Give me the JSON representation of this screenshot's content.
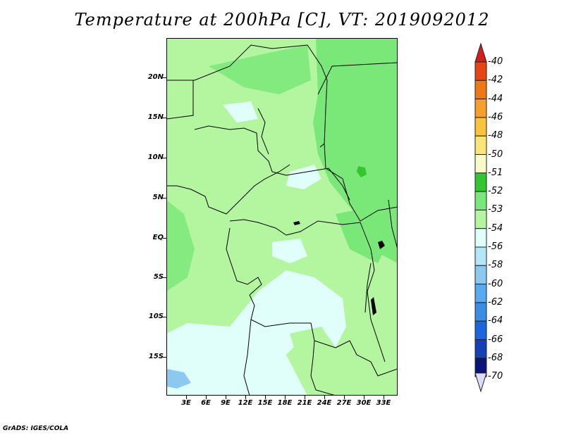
{
  "title": "Temperature at 200hPa [C], VT: 2019092012",
  "credit": "GrADS: IGES/COLA",
  "lat_labels": [
    "20N",
    "15N",
    "10N",
    "5N",
    "EQ",
    "5S",
    "10S",
    "15S"
  ],
  "lon_labels": [
    "3E",
    "6E",
    "9E",
    "12E",
    "15E",
    "18E",
    "21E",
    "24E",
    "27E",
    "30E",
    "33E"
  ],
  "colorbar": {
    "labels": [
      "-40",
      "-42",
      "-44",
      "-46",
      "-48",
      "-50",
      "-51",
      "-52",
      "-53",
      "-54",
      "-56",
      "-58",
      "-60",
      "-62",
      "-64",
      "-66",
      "-68",
      "-70"
    ],
    "colors": [
      "#d21e1e",
      "#e64614",
      "#f07814",
      "#f5a028",
      "#fac33c",
      "#fae678",
      "#fafac8",
      "#33c633",
      "#79e879",
      "#b4f5a0",
      "#e0fffa",
      "#b4e6fa",
      "#8cc8f0",
      "#5aaaf0",
      "#3c8ce6",
      "#1e64dc",
      "#1441b4",
      "#0a1478",
      "#dcdcff"
    ]
  },
  "chart_data": {
    "type": "heatmap",
    "variable": "Temperature at 200hPa",
    "unit": "C",
    "valid_time": "2019092012",
    "lon_range": [
      0,
      35
    ],
    "lat_range": [
      -20,
      25
    ],
    "levels": [
      -70,
      -68,
      -66,
      -64,
      -62,
      -60,
      -58,
      -56,
      -54,
      -53,
      -52,
      -51,
      -50,
      -48,
      -46,
      -44,
      -42,
      -40
    ],
    "dominant_values": {
      "north_and_central": "-53 to -54",
      "east_north_of_equator": "-52 to -53",
      "south_of_10S": "-54 to -56",
      "southwest_corner": "-56 to -58"
    }
  }
}
